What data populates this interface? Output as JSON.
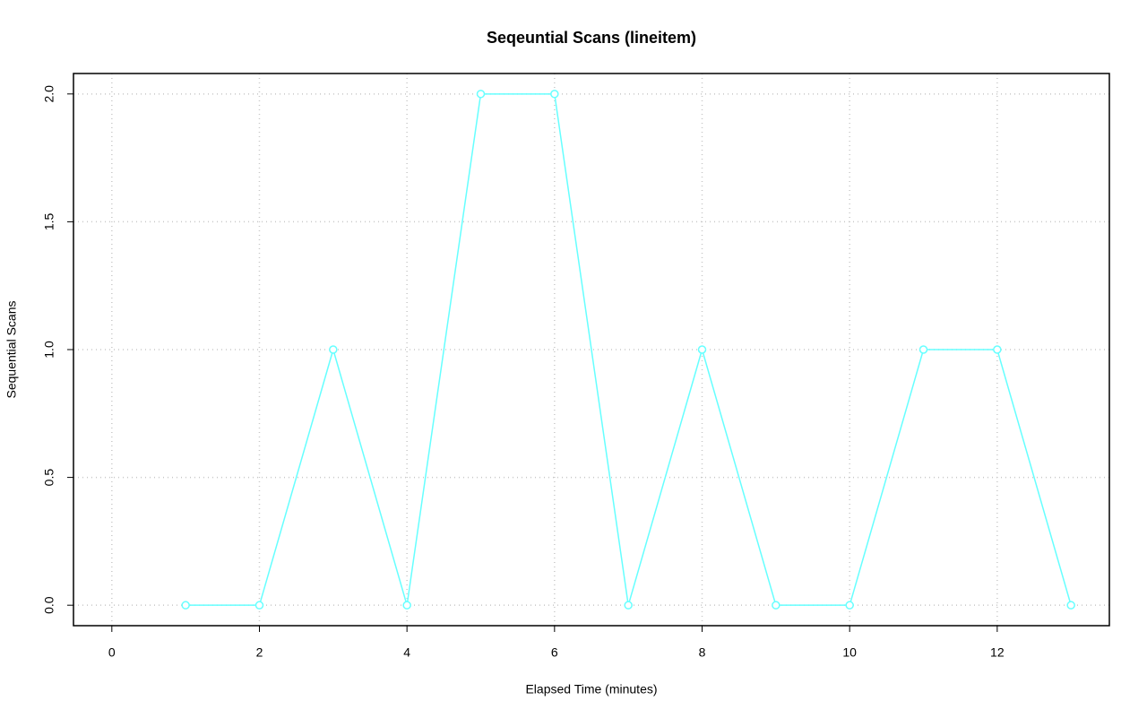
{
  "chart_data": {
    "type": "line",
    "title": "Seqeuntial Scans (lineitem)",
    "xlabel": "Elapsed Time (minutes)",
    "ylabel": "Sequential Scans",
    "x": [
      1,
      2,
      3,
      4,
      5,
      6,
      7,
      8,
      9,
      10,
      11,
      12,
      13
    ],
    "values": [
      0,
      0,
      1,
      0,
      2,
      2,
      0,
      1,
      0,
      0,
      1,
      1,
      0
    ],
    "color": "#66ffff",
    "xlim": [
      -0.52,
      13.52
    ],
    "xticks": [
      0,
      2,
      4,
      6,
      8,
      10,
      12
    ],
    "ylim": [
      -0.08,
      2.08
    ],
    "yticks": [
      {
        "value": 0,
        "label": "0.0"
      },
      {
        "value": 0.5,
        "label": "0.5"
      },
      {
        "value": 1,
        "label": "1.0"
      },
      {
        "value": 1.5,
        "label": "1.5"
      },
      {
        "value": 2,
        "label": "2.0"
      }
    ],
    "grid": true
  }
}
